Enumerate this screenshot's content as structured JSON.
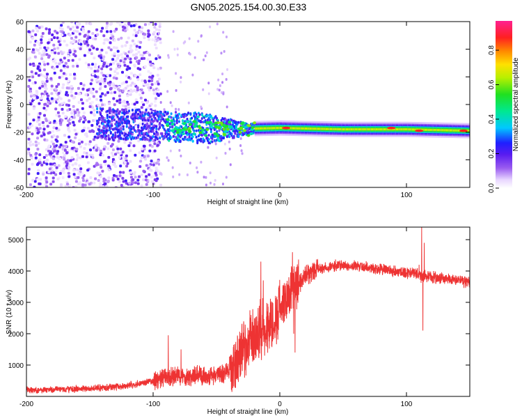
{
  "figure": {
    "title": "GN05.2025.154.00.30.E33"
  },
  "colors": {
    "snr_line": "#ee3333",
    "frame": "#000000"
  },
  "chart_data": [
    {
      "type": "heatmap",
      "xlabel": "Height of straight line (km)",
      "ylabel": "Frequency (Hz)",
      "xlim": [
        -200,
        150
      ],
      "ylim": [
        -60,
        60
      ],
      "xticks": [
        -200,
        -100,
        0,
        100
      ],
      "xtick_labels": [
        "-200",
        "-100",
        "0",
        "100"
      ],
      "yticks": [
        -60,
        -40,
        -20,
        0,
        20,
        40,
        60
      ],
      "ytick_labels": [
        "-60",
        "-40",
        "-20",
        "0",
        "20",
        "40",
        "60"
      ],
      "colorbar": {
        "label": "Normalized spectral amplitude",
        "range": [
          0,
          0.97
        ],
        "ticks": [
          0,
          0.2,
          0.4,
          0.6,
          0.8
        ],
        "tick_labels": [
          "0.0",
          "0.2",
          "0.4",
          "0.6",
          "0.8"
        ],
        "colormap": "rainbow (white-violet-blue-cyan-green-yellow-orange-red-magenta)"
      },
      "features": {
        "noise_region_x": [
          -200,
          -100
        ],
        "signal_track_start_x": -145,
        "track_frequency_hz": [
          [
            -145,
            -14
          ],
          [
            -100,
            -15
          ],
          [
            -50,
            -18
          ],
          [
            0,
            -17
          ],
          [
            50,
            -18
          ],
          [
            100,
            -18
          ],
          [
            150,
            -19
          ]
        ],
        "strong_peaks": [
          [
            5,
            -17
          ],
          [
            88,
            -17
          ],
          [
            110,
            -19
          ],
          [
            145,
            -19
          ]
        ]
      }
    },
    {
      "type": "line",
      "xlabel": "Height of straight line (km)",
      "ylabel": "SNR (10 * v/v)",
      "xlim": [
        -200,
        150
      ],
      "ylim": [
        0,
        5400
      ],
      "xticks": [
        -200,
        -100,
        0,
        100
      ],
      "xtick_labels": [
        "-200",
        "-100",
        "0",
        "100"
      ],
      "yticks": [
        1000,
        2000,
        3000,
        4000,
        5000
      ],
      "ytick_labels": [
        "1000",
        "2000",
        "3000",
        "4000",
        "5000"
      ],
      "series": [
        {
          "x": [
            -200,
            -175,
            -150,
            -125,
            -110,
            -100,
            -90,
            -80,
            -70,
            -60,
            -50,
            -40,
            -35,
            -30,
            -25,
            -20,
            -15,
            -10,
            -5,
            0,
            5,
            10,
            15,
            20,
            25,
            30,
            40,
            50,
            60,
            70,
            80,
            90,
            100,
            110,
            112,
            115,
            120,
            130,
            140,
            150
          ],
          "y": [
            200,
            220,
            250,
            320,
            420,
            500,
            580,
            640,
            640,
            650,
            680,
            800,
            1000,
            1400,
            1700,
            1900,
            2100,
            2250,
            2400,
            2800,
            3200,
            3400,
            3600,
            3800,
            3950,
            4050,
            4150,
            4180,
            4150,
            4120,
            4050,
            4000,
            3950,
            3900,
            3800,
            3850,
            3800,
            3750,
            3700,
            3650
          ],
          "spikes": [
            [
              -88,
              1950
            ],
            [
              -78,
              1500
            ],
            [
              -15,
              4300
            ],
            [
              -13,
              3700
            ],
            [
              -12,
              1300
            ],
            [
              10,
              4600
            ],
            [
              11,
              2000
            ],
            [
              12,
              1400
            ],
            [
              110,
              4200
            ],
            [
              112,
              5400
            ],
            [
              113,
              2100
            ],
            [
              114,
              4900
            ]
          ]
        }
      ]
    }
  ]
}
